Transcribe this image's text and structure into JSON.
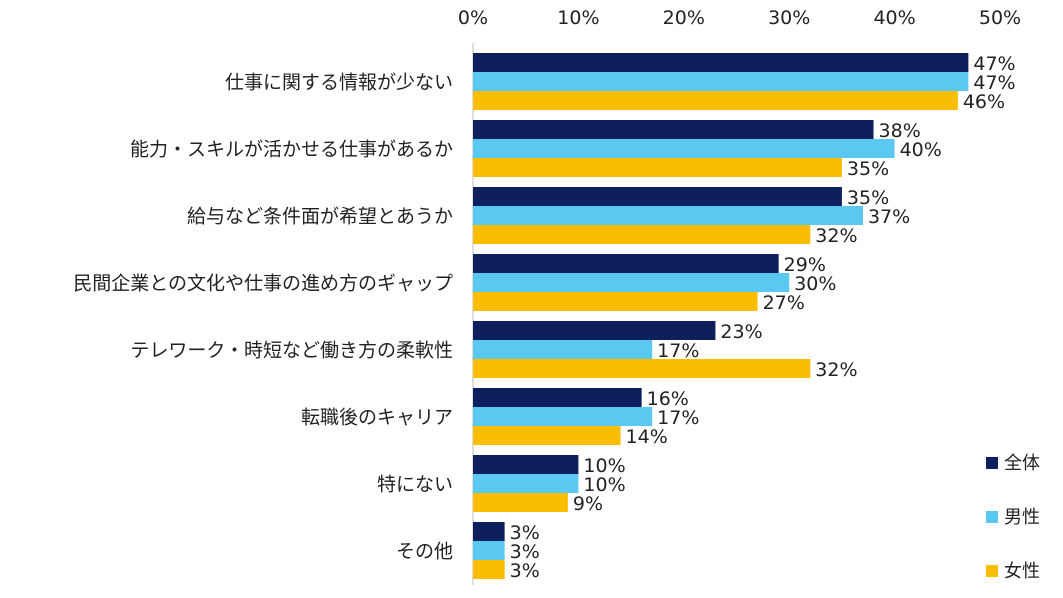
{
  "chart_data": {
    "type": "bar",
    "orientation": "horizontal",
    "categories": [
      "仕事に関する情報が少ない",
      "能力・スキルが活かせる仕事があるか",
      "給与など条件面が希望とあうか",
      "民間企業との文化や仕事の進め方のギャップ",
      "テレワーク・時短など働き方の柔軟性",
      "転職後のキャリア",
      "特にない",
      "その他"
    ],
    "series": [
      {
        "name": "全体",
        "color": "#0d1f5c",
        "values": [
          47,
          38,
          35,
          29,
          23,
          16,
          10,
          3
        ],
        "labels": [
          "47%",
          "38%",
          "35%",
          "29%",
          "23%",
          "16%",
          "10%",
          "3%"
        ]
      },
      {
        "name": "男性",
        "color": "#5bc8f2",
        "values": [
          47,
          40,
          37,
          30,
          17,
          17,
          10,
          3
        ],
        "labels": [
          "47%",
          "40%",
          "37%",
          "30%",
          "17%",
          "17%",
          "10%",
          "3%"
        ]
      },
      {
        "name": "女性",
        "color": "#fbbd00",
        "values": [
          46,
          35,
          32,
          27,
          32,
          14,
          9,
          3
        ],
        "labels": [
          "46%",
          "35%",
          "32%",
          "27%",
          "32%",
          "14%",
          "9%",
          "3%"
        ]
      }
    ],
    "xlim": [
      0,
      50
    ],
    "x_ticks": [
      "0%",
      "10%",
      "20%",
      "30%",
      "40%",
      "50%"
    ],
    "axis_position": "top",
    "grid": false,
    "legend_position": "bottom-right",
    "title": "",
    "xlabel": "",
    "ylabel": ""
  }
}
